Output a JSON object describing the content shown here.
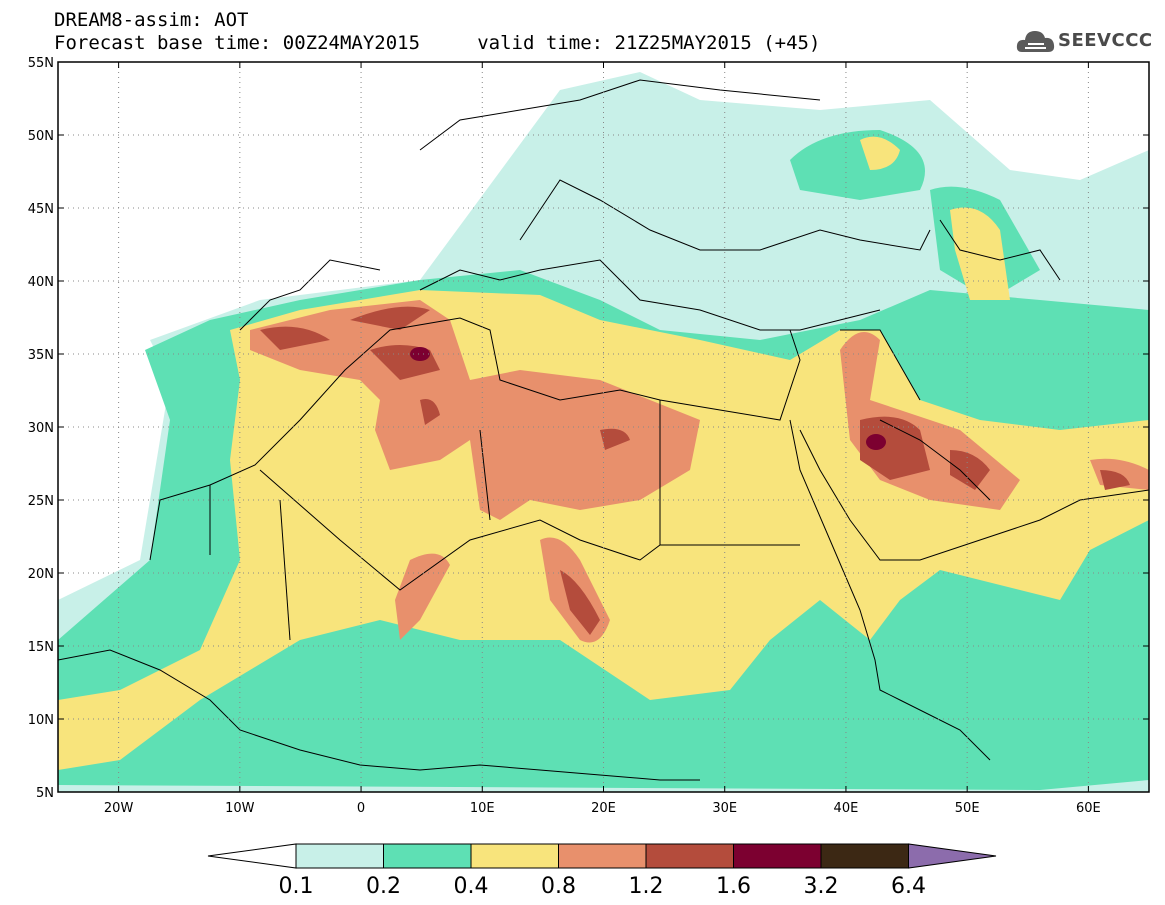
{
  "title": {
    "line1": "DREAM8-assim: AOT",
    "line2": "Forecast base time: 00Z24MAY2015     valid time: 21Z25MAY2015 (+45)"
  },
  "logo": {
    "text": "SEEVCCC",
    "icon": "cloud-icon"
  },
  "map": {
    "lon_range": [
      -25,
      65
    ],
    "lat_range": [
      5,
      55
    ],
    "lat_ticks": [
      {
        "value": 55,
        "label": "55N"
      },
      {
        "value": 50,
        "label": "50N"
      },
      {
        "value": 45,
        "label": "45N"
      },
      {
        "value": 40,
        "label": "40N"
      },
      {
        "value": 35,
        "label": "35N"
      },
      {
        "value": 30,
        "label": "30N"
      },
      {
        "value": 25,
        "label": "25N"
      },
      {
        "value": 20,
        "label": "20N"
      },
      {
        "value": 15,
        "label": "15N"
      },
      {
        "value": 10,
        "label": "10N"
      },
      {
        "value": 5,
        "label": "5N"
      }
    ],
    "lon_ticks": [
      {
        "value": -20,
        "label": "20W"
      },
      {
        "value": -10,
        "label": "10W"
      },
      {
        "value": 0,
        "label": "0"
      },
      {
        "value": 10,
        "label": "10E"
      },
      {
        "value": 20,
        "label": "20E"
      },
      {
        "value": 30,
        "label": "30E"
      },
      {
        "value": 40,
        "label": "40E"
      },
      {
        "value": 50,
        "label": "50E"
      },
      {
        "value": 60,
        "label": "60E"
      }
    ],
    "grid": "dotted"
  },
  "colorbar": {
    "labels": [
      "0.1",
      "0.2",
      "0.4",
      "0.8",
      "1.2",
      "1.6",
      "3.2",
      "6.4"
    ],
    "colors": [
      "#ffffff",
      "#c8f0e8",
      "#5ee0b4",
      "#f8e47c",
      "#e8906c",
      "#b44c3c",
      "#7c0030",
      "#3c2814",
      "#8c6cac"
    ]
  }
}
